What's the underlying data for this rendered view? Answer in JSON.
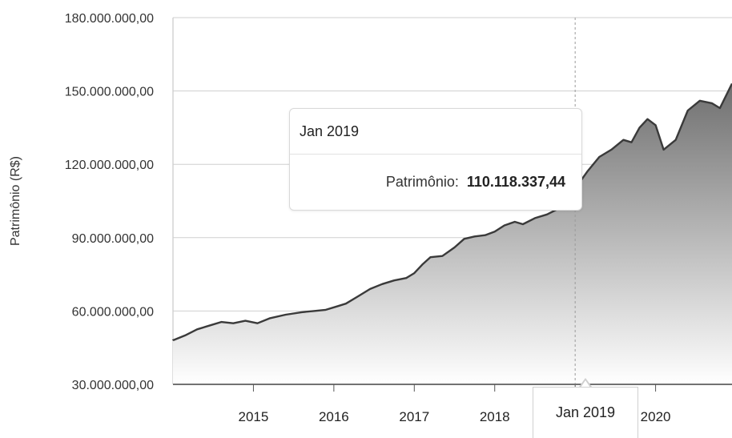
{
  "chart_data": {
    "type": "area",
    "ylabel": "Patrimônio (R$)",
    "ylim": [
      30000000,
      180000000
    ],
    "yticks": [
      "30.000.000,00",
      "60.000.000,00",
      "90.000.000,00",
      "120.000.000,00",
      "150.000.000,00",
      "180.000.000,00"
    ],
    "ytick_values": [
      30000000,
      60000000,
      90000000,
      120000000,
      150000000,
      180000000
    ],
    "xticks": [
      "2015",
      "2016",
      "2017",
      "2018",
      "2019",
      "2020"
    ],
    "xtick_years": [
      2015,
      2016,
      2017,
      2018,
      2019,
      2020
    ],
    "xlim": [
      2014.0,
      2020.95
    ],
    "grid": true,
    "series": [
      {
        "points": [
          [
            2014.0,
            48000000
          ],
          [
            2014.15,
            50000000
          ],
          [
            2014.3,
            52500000
          ],
          [
            2014.45,
            54000000
          ],
          [
            2014.6,
            55500000
          ],
          [
            2014.75,
            55000000
          ],
          [
            2014.9,
            56000000
          ],
          [
            2015.05,
            55000000
          ],
          [
            2015.2,
            57000000
          ],
          [
            2015.4,
            58500000
          ],
          [
            2015.6,
            59500000
          ],
          [
            2015.75,
            60000000
          ],
          [
            2015.9,
            60500000
          ],
          [
            2016.05,
            62000000
          ],
          [
            2016.15,
            63000000
          ],
          [
            2016.3,
            66000000
          ],
          [
            2016.45,
            69000000
          ],
          [
            2016.6,
            71000000
          ],
          [
            2016.75,
            72500000
          ],
          [
            2016.9,
            73500000
          ],
          [
            2017.0,
            75500000
          ],
          [
            2017.1,
            79000000
          ],
          [
            2017.2,
            82000000
          ],
          [
            2017.35,
            82500000
          ],
          [
            2017.5,
            86000000
          ],
          [
            2017.62,
            89500000
          ],
          [
            2017.75,
            90500000
          ],
          [
            2017.88,
            91000000
          ],
          [
            2018.0,
            92500000
          ],
          [
            2018.12,
            95000000
          ],
          [
            2018.25,
            96500000
          ],
          [
            2018.35,
            95500000
          ],
          [
            2018.5,
            98000000
          ],
          [
            2018.65,
            99500000
          ],
          [
            2018.8,
            102000000
          ],
          [
            2019.0,
            110118337.44
          ],
          [
            2019.15,
            117000000
          ],
          [
            2019.3,
            123000000
          ],
          [
            2019.45,
            126000000
          ],
          [
            2019.6,
            130000000
          ],
          [
            2019.7,
            129000000
          ],
          [
            2019.8,
            135000000
          ],
          [
            2019.9,
            138500000
          ],
          [
            2020.0,
            136000000
          ],
          [
            2020.1,
            126000000
          ],
          [
            2020.25,
            130000000
          ],
          [
            2020.4,
            142000000
          ],
          [
            2020.55,
            146000000
          ],
          [
            2020.7,
            145000000
          ],
          [
            2020.8,
            143000000
          ],
          [
            2020.95,
            153000000
          ]
        ]
      }
    ]
  },
  "tooltip": {
    "title": "Jan 2019",
    "label": "Patrimônio:",
    "value": "110.118.337,44",
    "x": 2019.0,
    "y": 110118337.44
  },
  "x_flag": "Jan 2019",
  "colors": {
    "line": "#3a3a3a",
    "area_top": "#6f6f6f",
    "area_bottom": "#ffffff",
    "grid": "#cfcfcf",
    "marker": "#4a4a4a"
  }
}
